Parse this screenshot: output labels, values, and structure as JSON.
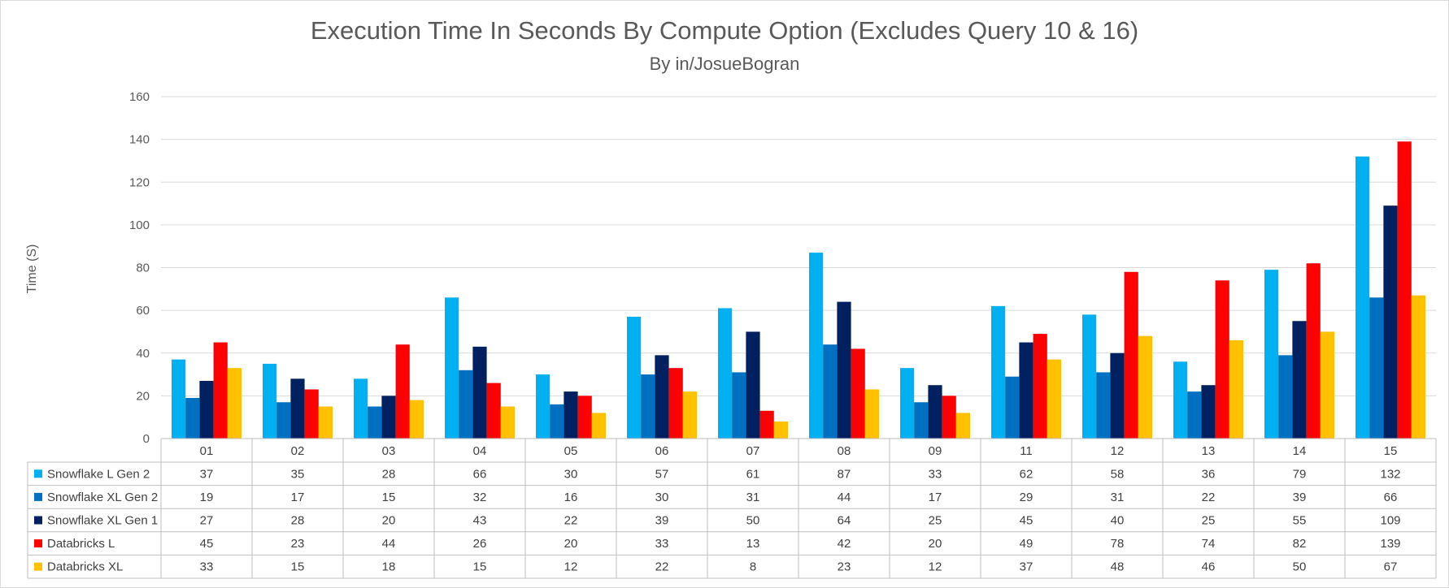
{
  "chart_data": {
    "type": "bar",
    "title": "Execution Time In Seconds By Compute Option (Excludes Query 10 & 16)",
    "subtitle": "By in/JosueBogran",
    "ylabel": "Time (S)",
    "xlabel": "",
    "ylim": [
      0,
      160
    ],
    "yticks": [
      0,
      20,
      40,
      60,
      80,
      100,
      120,
      140,
      160
    ],
    "grid": true,
    "legend": "data-table",
    "categories": [
      "01",
      "02",
      "03",
      "04",
      "05",
      "06",
      "07",
      "08",
      "09",
      "11",
      "12",
      "13",
      "14",
      "15"
    ],
    "series": [
      {
        "name": "Snowflake L Gen 2",
        "color": "#00B0F0",
        "values": [
          37,
          35,
          28,
          66,
          30,
          57,
          61,
          87,
          33,
          62,
          58,
          36,
          79,
          132
        ]
      },
      {
        "name": "Snowflake XL Gen 2",
        "color": "#0070C0",
        "values": [
          19,
          17,
          15,
          32,
          16,
          30,
          31,
          44,
          17,
          29,
          31,
          22,
          39,
          66
        ]
      },
      {
        "name": "Snowflake XL Gen 1",
        "color": "#002060",
        "values": [
          27,
          28,
          20,
          43,
          22,
          39,
          50,
          64,
          25,
          45,
          40,
          25,
          55,
          109
        ]
      },
      {
        "name": "Databricks L",
        "color": "#FF0000",
        "values": [
          45,
          23,
          44,
          26,
          20,
          33,
          13,
          42,
          20,
          49,
          78,
          74,
          82,
          139
        ]
      },
      {
        "name": "Databricks XL",
        "color": "#FFC000",
        "values": [
          33,
          15,
          18,
          15,
          12,
          22,
          8,
          23,
          12,
          37,
          48,
          46,
          50,
          67
        ]
      }
    ]
  }
}
